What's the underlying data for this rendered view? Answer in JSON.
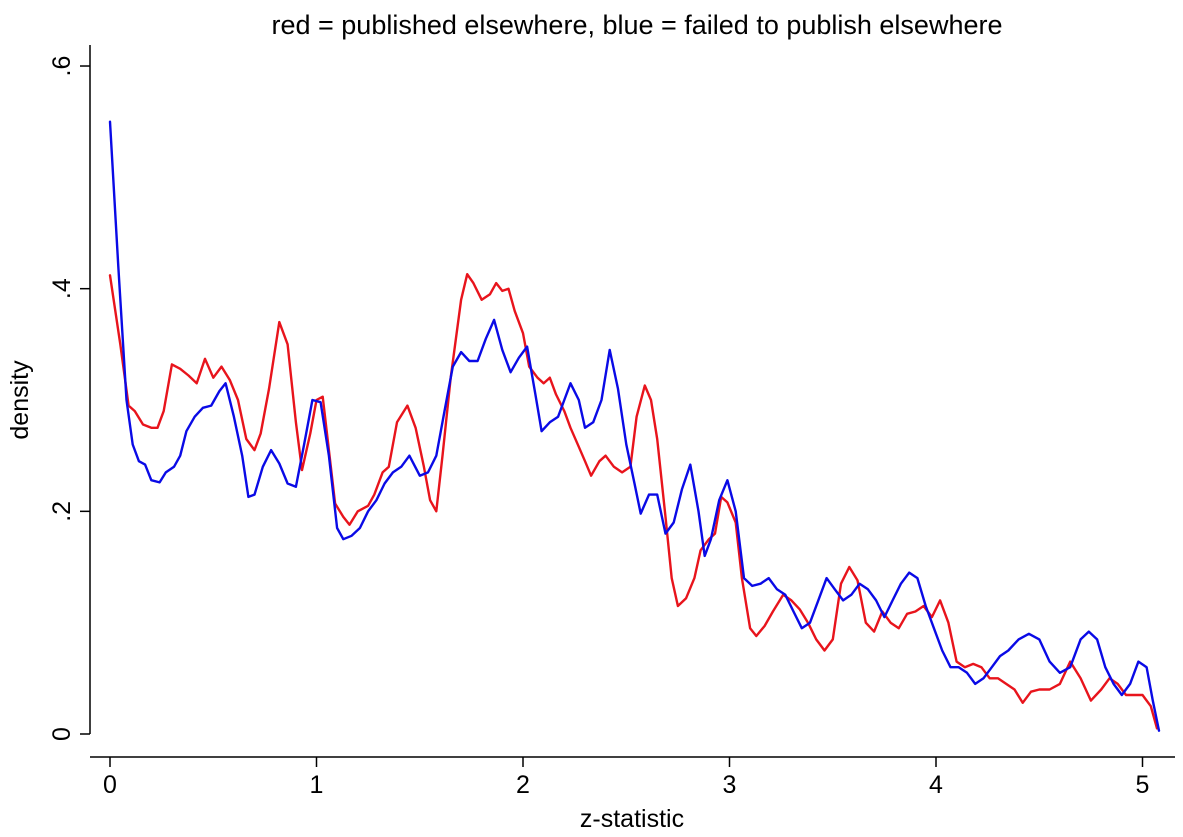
{
  "chart_data": {
    "type": "line",
    "title": "red = published elsewhere, blue = failed to publish elsewhere",
    "xlabel": "z-statistic",
    "ylabel": "density",
    "xlim": [
      0,
      5.1
    ],
    "ylim": [
      0,
      0.6
    ],
    "grid": false,
    "legend": "none",
    "xticks": [
      {
        "value": 0,
        "label": "0"
      },
      {
        "value": 1,
        "label": "1"
      },
      {
        "value": 2,
        "label": "2"
      },
      {
        "value": 3,
        "label": "3"
      },
      {
        "value": 4,
        "label": "4"
      },
      {
        "value": 5,
        "label": "5"
      }
    ],
    "yticks": [
      {
        "value": 0,
        "label": "0"
      },
      {
        "value": 0.2,
        "label": ".2"
      },
      {
        "value": 0.4,
        "label": ".4"
      },
      {
        "value": 0.6,
        "label": ".6"
      }
    ],
    "series": [
      {
        "color": "#e8141c",
        "points": [
          [
            0.0,
            0.412
          ],
          [
            0.05,
            0.35
          ],
          [
            0.09,
            0.295
          ],
          [
            0.12,
            0.29
          ],
          [
            0.16,
            0.278
          ],
          [
            0.2,
            0.275
          ],
          [
            0.23,
            0.275
          ],
          [
            0.26,
            0.29
          ],
          [
            0.3,
            0.332
          ],
          [
            0.34,
            0.328
          ],
          [
            0.38,
            0.322
          ],
          [
            0.42,
            0.315
          ],
          [
            0.46,
            0.337
          ],
          [
            0.5,
            0.32
          ],
          [
            0.54,
            0.33
          ],
          [
            0.58,
            0.318
          ],
          [
            0.62,
            0.3
          ],
          [
            0.66,
            0.265
          ],
          [
            0.7,
            0.255
          ],
          [
            0.73,
            0.27
          ],
          [
            0.77,
            0.31
          ],
          [
            0.82,
            0.37
          ],
          [
            0.86,
            0.35
          ],
          [
            0.9,
            0.28
          ],
          [
            0.93,
            0.237
          ],
          [
            0.97,
            0.27
          ],
          [
            1.0,
            0.3
          ],
          [
            1.03,
            0.303
          ],
          [
            1.06,
            0.255
          ],
          [
            1.09,
            0.207
          ],
          [
            1.13,
            0.195
          ],
          [
            1.16,
            0.188
          ],
          [
            1.2,
            0.2
          ],
          [
            1.25,
            0.205
          ],
          [
            1.28,
            0.215
          ],
          [
            1.32,
            0.235
          ],
          [
            1.35,
            0.24
          ],
          [
            1.39,
            0.28
          ],
          [
            1.44,
            0.295
          ],
          [
            1.48,
            0.275
          ],
          [
            1.52,
            0.24
          ],
          [
            1.55,
            0.21
          ],
          [
            1.58,
            0.2
          ],
          [
            1.61,
            0.25
          ],
          [
            1.65,
            0.32
          ],
          [
            1.7,
            0.39
          ],
          [
            1.73,
            0.413
          ],
          [
            1.76,
            0.405
          ],
          [
            1.8,
            0.39
          ],
          [
            1.84,
            0.395
          ],
          [
            1.87,
            0.405
          ],
          [
            1.9,
            0.398
          ],
          [
            1.93,
            0.4
          ],
          [
            1.96,
            0.38
          ],
          [
            2.0,
            0.36
          ],
          [
            2.03,
            0.33
          ],
          [
            2.07,
            0.32
          ],
          [
            2.1,
            0.315
          ],
          [
            2.13,
            0.32
          ],
          [
            2.16,
            0.305
          ],
          [
            2.2,
            0.29
          ],
          [
            2.23,
            0.275
          ],
          [
            2.27,
            0.258
          ],
          [
            2.3,
            0.245
          ],
          [
            2.33,
            0.232
          ],
          [
            2.37,
            0.245
          ],
          [
            2.4,
            0.25
          ],
          [
            2.44,
            0.24
          ],
          [
            2.48,
            0.235
          ],
          [
            2.52,
            0.24
          ],
          [
            2.55,
            0.285
          ],
          [
            2.59,
            0.313
          ],
          [
            2.62,
            0.3
          ],
          [
            2.65,
            0.265
          ],
          [
            2.69,
            0.195
          ],
          [
            2.72,
            0.14
          ],
          [
            2.75,
            0.115
          ],
          [
            2.79,
            0.122
          ],
          [
            2.83,
            0.14
          ],
          [
            2.86,
            0.165
          ],
          [
            2.9,
            0.175
          ],
          [
            2.93,
            0.18
          ],
          [
            2.96,
            0.213
          ],
          [
            2.99,
            0.208
          ],
          [
            3.03,
            0.19
          ],
          [
            3.06,
            0.14
          ],
          [
            3.1,
            0.095
          ],
          [
            3.13,
            0.088
          ],
          [
            3.17,
            0.097
          ],
          [
            3.21,
            0.11
          ],
          [
            3.26,
            0.125
          ],
          [
            3.3,
            0.12
          ],
          [
            3.34,
            0.112
          ],
          [
            3.38,
            0.1
          ],
          [
            3.42,
            0.085
          ],
          [
            3.46,
            0.075
          ],
          [
            3.5,
            0.085
          ],
          [
            3.54,
            0.135
          ],
          [
            3.58,
            0.15
          ],
          [
            3.62,
            0.138
          ],
          [
            3.66,
            0.1
          ],
          [
            3.7,
            0.092
          ],
          [
            3.74,
            0.11
          ],
          [
            3.78,
            0.1
          ],
          [
            3.82,
            0.095
          ],
          [
            3.86,
            0.108
          ],
          [
            3.9,
            0.11
          ],
          [
            3.94,
            0.115
          ],
          [
            3.98,
            0.105
          ],
          [
            4.02,
            0.12
          ],
          [
            4.06,
            0.1
          ],
          [
            4.1,
            0.065
          ],
          [
            4.14,
            0.06
          ],
          [
            4.18,
            0.063
          ],
          [
            4.22,
            0.06
          ],
          [
            4.26,
            0.05
          ],
          [
            4.3,
            0.05
          ],
          [
            4.34,
            0.045
          ],
          [
            4.38,
            0.04
          ],
          [
            4.42,
            0.028
          ],
          [
            4.46,
            0.038
          ],
          [
            4.5,
            0.04
          ],
          [
            4.55,
            0.04
          ],
          [
            4.6,
            0.045
          ],
          [
            4.65,
            0.065
          ],
          [
            4.7,
            0.05
          ],
          [
            4.75,
            0.03
          ],
          [
            4.8,
            0.04
          ],
          [
            4.84,
            0.05
          ],
          [
            4.88,
            0.045
          ],
          [
            4.92,
            0.035
          ],
          [
            4.96,
            0.035
          ],
          [
            5.0,
            0.035
          ],
          [
            5.04,
            0.025
          ],
          [
            5.07,
            0.005
          ]
        ]
      },
      {
        "color": "#0a0ae6",
        "points": [
          [
            0.0,
            0.55
          ],
          [
            0.04,
            0.42
          ],
          [
            0.08,
            0.3
          ],
          [
            0.11,
            0.26
          ],
          [
            0.14,
            0.245
          ],
          [
            0.17,
            0.242
          ],
          [
            0.2,
            0.228
          ],
          [
            0.24,
            0.226
          ],
          [
            0.27,
            0.235
          ],
          [
            0.31,
            0.24
          ],
          [
            0.34,
            0.25
          ],
          [
            0.37,
            0.272
          ],
          [
            0.41,
            0.285
          ],
          [
            0.45,
            0.293
          ],
          [
            0.49,
            0.295
          ],
          [
            0.53,
            0.308
          ],
          [
            0.56,
            0.315
          ],
          [
            0.6,
            0.285
          ],
          [
            0.64,
            0.25
          ],
          [
            0.67,
            0.213
          ],
          [
            0.7,
            0.215
          ],
          [
            0.74,
            0.24
          ],
          [
            0.78,
            0.255
          ],
          [
            0.82,
            0.243
          ],
          [
            0.86,
            0.225
          ],
          [
            0.9,
            0.222
          ],
          [
            0.94,
            0.26
          ],
          [
            0.98,
            0.3
          ],
          [
            1.02,
            0.298
          ],
          [
            1.06,
            0.25
          ],
          [
            1.1,
            0.185
          ],
          [
            1.13,
            0.175
          ],
          [
            1.17,
            0.178
          ],
          [
            1.21,
            0.185
          ],
          [
            1.25,
            0.2
          ],
          [
            1.29,
            0.21
          ],
          [
            1.33,
            0.225
          ],
          [
            1.37,
            0.235
          ],
          [
            1.41,
            0.24
          ],
          [
            1.45,
            0.25
          ],
          [
            1.5,
            0.232
          ],
          [
            1.54,
            0.235
          ],
          [
            1.58,
            0.25
          ],
          [
            1.62,
            0.29
          ],
          [
            1.66,
            0.33
          ],
          [
            1.7,
            0.343
          ],
          [
            1.74,
            0.335
          ],
          [
            1.78,
            0.335
          ],
          [
            1.82,
            0.355
          ],
          [
            1.86,
            0.372
          ],
          [
            1.9,
            0.345
          ],
          [
            1.94,
            0.325
          ],
          [
            1.98,
            0.338
          ],
          [
            2.02,
            0.348
          ],
          [
            2.06,
            0.305
          ],
          [
            2.09,
            0.272
          ],
          [
            2.13,
            0.28
          ],
          [
            2.17,
            0.285
          ],
          [
            2.2,
            0.3
          ],
          [
            2.23,
            0.315
          ],
          [
            2.27,
            0.3
          ],
          [
            2.3,
            0.275
          ],
          [
            2.34,
            0.28
          ],
          [
            2.38,
            0.3
          ],
          [
            2.42,
            0.345
          ],
          [
            2.46,
            0.31
          ],
          [
            2.5,
            0.26
          ],
          [
            2.54,
            0.225
          ],
          [
            2.57,
            0.198
          ],
          [
            2.61,
            0.215
          ],
          [
            2.65,
            0.215
          ],
          [
            2.69,
            0.18
          ],
          [
            2.73,
            0.19
          ],
          [
            2.77,
            0.22
          ],
          [
            2.81,
            0.242
          ],
          [
            2.85,
            0.2
          ],
          [
            2.88,
            0.16
          ],
          [
            2.91,
            0.175
          ],
          [
            2.95,
            0.21
          ],
          [
            2.99,
            0.228
          ],
          [
            3.03,
            0.2
          ],
          [
            3.07,
            0.14
          ],
          [
            3.11,
            0.133
          ],
          [
            3.15,
            0.135
          ],
          [
            3.19,
            0.14
          ],
          [
            3.23,
            0.13
          ],
          [
            3.27,
            0.125
          ],
          [
            3.31,
            0.11
          ],
          [
            3.35,
            0.095
          ],
          [
            3.39,
            0.1
          ],
          [
            3.43,
            0.12
          ],
          [
            3.47,
            0.14
          ],
          [
            3.51,
            0.13
          ],
          [
            3.55,
            0.12
          ],
          [
            3.59,
            0.125
          ],
          [
            3.63,
            0.135
          ],
          [
            3.67,
            0.13
          ],
          [
            3.71,
            0.12
          ],
          [
            3.75,
            0.105
          ],
          [
            3.79,
            0.12
          ],
          [
            3.83,
            0.135
          ],
          [
            3.87,
            0.145
          ],
          [
            3.91,
            0.14
          ],
          [
            3.95,
            0.115
          ],
          [
            3.99,
            0.095
          ],
          [
            4.03,
            0.075
          ],
          [
            4.07,
            0.06
          ],
          [
            4.11,
            0.06
          ],
          [
            4.15,
            0.055
          ],
          [
            4.19,
            0.045
          ],
          [
            4.23,
            0.05
          ],
          [
            4.27,
            0.06
          ],
          [
            4.31,
            0.07
          ],
          [
            4.35,
            0.075
          ],
          [
            4.4,
            0.085
          ],
          [
            4.45,
            0.09
          ],
          [
            4.5,
            0.085
          ],
          [
            4.55,
            0.065
          ],
          [
            4.6,
            0.055
          ],
          [
            4.65,
            0.06
          ],
          [
            4.7,
            0.085
          ],
          [
            4.74,
            0.092
          ],
          [
            4.78,
            0.085
          ],
          [
            4.82,
            0.06
          ],
          [
            4.86,
            0.045
          ],
          [
            4.9,
            0.035
          ],
          [
            4.94,
            0.045
          ],
          [
            4.98,
            0.065
          ],
          [
            5.02,
            0.06
          ],
          [
            5.05,
            0.03
          ],
          [
            5.08,
            0.003
          ]
        ]
      }
    ]
  }
}
